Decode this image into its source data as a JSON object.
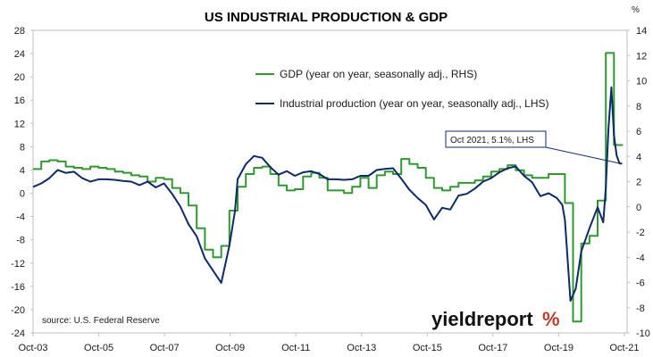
{
  "chart_data": {
    "type": "line",
    "title": "US INDUSTRIAL PRODUCTION & GDP",
    "right_axis_unit": "%",
    "x_ticks": [
      "Oct-03",
      "Oct-05",
      "Oct-07",
      "Oct-09",
      "Oct-11",
      "Oct-13",
      "Oct-15",
      "Oct-17",
      "Oct-19",
      "Oct-21"
    ],
    "ylim_left": [
      -24,
      28
    ],
    "yticks_left": [
      28,
      24,
      20,
      16,
      12,
      8,
      4,
      0,
      -4,
      -8,
      -12,
      -16,
      -20,
      -24
    ],
    "ylim_right": [
      -10,
      14
    ],
    "yticks_right": [
      14,
      12,
      10,
      8,
      6,
      4,
      2,
      0,
      -2,
      -4,
      -6,
      -8,
      -10
    ],
    "xlim": [
      2003.75,
      2021.9
    ],
    "grid": false,
    "legend_placement": "top-center",
    "colors": {
      "gdp": "#2e9a2e",
      "ip": "#0d2a6b",
      "annotation": "#0d2a6b"
    },
    "series": [
      {
        "name": "GDP (year on year, seasonally adj., RHS)",
        "axis": "right",
        "step": true,
        "x": [
          2003.75,
          2004.0,
          2004.25,
          2004.5,
          2004.75,
          2005.0,
          2005.25,
          2005.5,
          2005.75,
          2006.0,
          2006.25,
          2006.5,
          2006.75,
          2007.0,
          2007.25,
          2007.5,
          2007.75,
          2008.0,
          2008.25,
          2008.5,
          2008.75,
          2009.0,
          2009.25,
          2009.5,
          2009.75,
          2010.0,
          2010.25,
          2010.5,
          2010.75,
          2011.0,
          2011.25,
          2011.5,
          2011.75,
          2012.0,
          2012.25,
          2012.5,
          2012.75,
          2013.0,
          2013.25,
          2013.5,
          2013.75,
          2014.0,
          2014.25,
          2014.5,
          2014.75,
          2015.0,
          2015.25,
          2015.5,
          2015.75,
          2016.0,
          2016.25,
          2016.5,
          2016.75,
          2017.0,
          2017.25,
          2017.5,
          2017.75,
          2018.0,
          2018.25,
          2018.5,
          2018.75,
          2019.0,
          2019.25,
          2019.5,
          2019.75,
          2020.0,
          2020.25,
          2020.5,
          2020.75,
          2021.0,
          2021.25,
          2021.5,
          2021.75
        ],
        "values": [
          3.0,
          3.6,
          3.7,
          3.6,
          3.2,
          3.1,
          3.0,
          3.2,
          3.1,
          3.0,
          2.8,
          2.7,
          2.5,
          2.4,
          2.0,
          2.3,
          2.2,
          1.5,
          1.1,
          0.1,
          -1.7,
          -3.4,
          -4.0,
          -3.1,
          -0.3,
          1.6,
          2.6,
          3.1,
          3.2,
          2.6,
          1.7,
          1.3,
          1.4,
          2.4,
          2.7,
          2.3,
          1.3,
          1.3,
          1.1,
          1.6,
          2.3,
          1.5,
          2.5,
          2.8,
          2.6,
          3.8,
          3.4,
          3.1,
          2.3,
          1.5,
          1.3,
          1.6,
          1.9,
          1.9,
          2.1,
          2.4,
          2.8,
          3.0,
          3.3,
          2.9,
          2.5,
          2.3,
          2.3,
          2.6,
          2.6,
          0.3,
          -9.1,
          -2.9,
          -2.3,
          0.5,
          12.2,
          4.9,
          4.9
        ]
      },
      {
        "name": "Industrial production (year on year, seasonally adj., LHS)",
        "axis": "left",
        "step": false,
        "x": [
          2003.75,
          2004.0,
          2004.25,
          2004.5,
          2004.75,
          2005.0,
          2005.25,
          2005.5,
          2005.75,
          2006.0,
          2006.25,
          2006.5,
          2006.75,
          2007.0,
          2007.25,
          2007.5,
          2007.75,
          2008.0,
          2008.25,
          2008.5,
          2008.75,
          2009.0,
          2009.25,
          2009.5,
          2009.75,
          2009.92,
          2010.0,
          2010.25,
          2010.5,
          2010.75,
          2011.0,
          2011.25,
          2011.5,
          2011.75,
          2012.0,
          2012.25,
          2012.5,
          2012.75,
          2013.0,
          2013.25,
          2013.5,
          2013.75,
          2014.0,
          2014.25,
          2014.5,
          2014.75,
          2015.0,
          2015.25,
          2015.5,
          2015.75,
          2016.0,
          2016.25,
          2016.5,
          2016.75,
          2017.0,
          2017.25,
          2017.5,
          2017.75,
          2018.0,
          2018.25,
          2018.5,
          2018.75,
          2019.0,
          2019.25,
          2019.5,
          2019.75,
          2019.92,
          2020.0,
          2020.17,
          2020.33,
          2020.5,
          2020.75,
          2021.0,
          2021.17,
          2021.25,
          2021.33,
          2021.42,
          2021.5,
          2021.58,
          2021.67,
          2021.75
        ],
        "values": [
          1.1,
          1.7,
          2.6,
          4.0,
          3.5,
          3.7,
          2.6,
          2.0,
          2.4,
          2.4,
          2.3,
          2.1,
          2.0,
          1.4,
          2.0,
          1.0,
          1.7,
          -0.1,
          -2.3,
          -5.3,
          -7.4,
          -11.2,
          -13.3,
          -15.4,
          -9.0,
          -3.0,
          2.4,
          5.0,
          6.4,
          6.1,
          4.5,
          3.2,
          3.8,
          3.0,
          3.6,
          3.8,
          3.3,
          2.4,
          2.4,
          2.3,
          2.4,
          3.0,
          3.0,
          4.0,
          4.2,
          4.3,
          2.5,
          0.6,
          -0.8,
          -2.0,
          -4.5,
          -2.5,
          -2.8,
          -0.4,
          -0.1,
          0.8,
          2.0,
          2.6,
          3.6,
          4.3,
          4.6,
          3.0,
          1.9,
          -0.5,
          0.0,
          -0.8,
          -2.0,
          -4.6,
          -18.5,
          -16.4,
          -10.0,
          -6.0,
          -2.4,
          -5.0,
          1.0,
          11.0,
          18.2,
          10.0,
          6.5,
          5.1,
          5.1
        ]
      }
    ],
    "annotation": {
      "text": "Oct 2021, 5.1%, LHS",
      "x": 2021.7,
      "y": 5.1,
      "axis": "left"
    },
    "source": "source: U.S. Federal Reserve",
    "logo": {
      "word": "yieldreport",
      "suffix": "%"
    }
  }
}
